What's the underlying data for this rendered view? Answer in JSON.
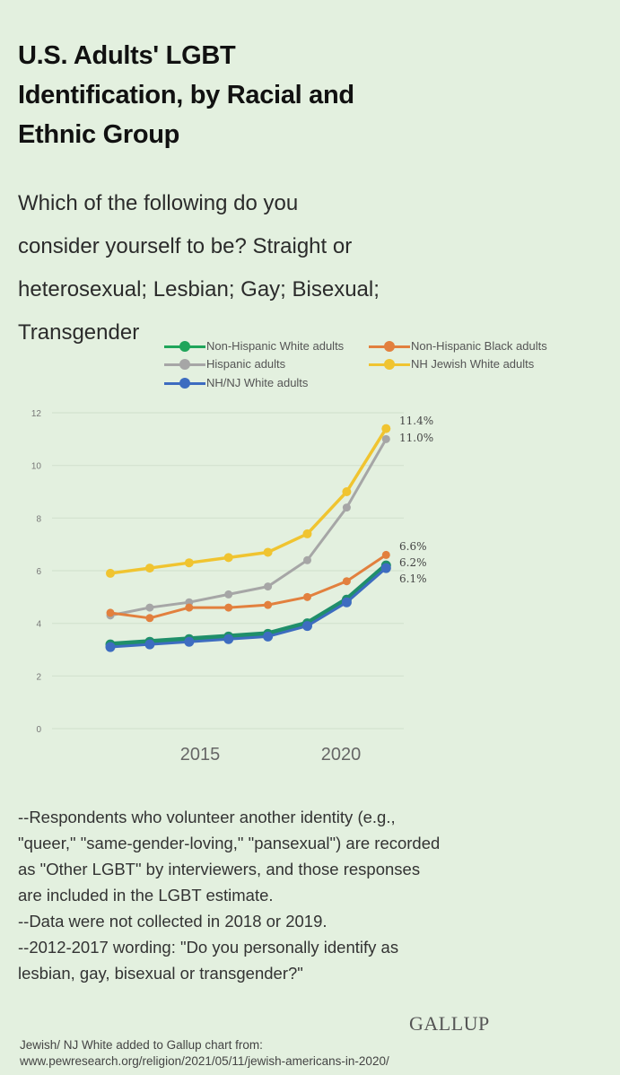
{
  "title_lines": [
    "U.S. Adults' LGBT",
    "Identification, by Racial and",
    "Ethnic Group"
  ],
  "question_lines": [
    "Which of the following do you",
    "consider yourself to be? Straight or",
    "heterosexual; Lesbian; Gay; Bisexual;",
    "Transgender"
  ],
  "legend": [
    {
      "label": "Non-Hispanic White adults",
      "color": "#1fa55a"
    },
    {
      "label": "Non-Hispanic Black adults",
      "color": "#e2803e"
    },
    {
      "label": "Hispanic adults",
      "color": "#a6a6a6"
    },
    {
      "label": "NH Jewish White adults",
      "color": "#f0c430"
    },
    {
      "label": "NH/NJ White adults",
      "color": "#3d6cc0"
    }
  ],
  "chart_data": {
    "type": "line",
    "title": "U.S. Adults' LGBT Identification, by Racial and Ethnic Group",
    "x": [
      2012,
      2013,
      2014,
      2015,
      2016,
      2017,
      2020,
      2021
    ],
    "x_tick_labels": [
      "2015",
      "2020"
    ],
    "y_tick_labels": [
      "0",
      "2",
      "4",
      "6",
      "8",
      "10",
      "12"
    ],
    "ylim": [
      0,
      12
    ],
    "grid": true,
    "legend_position": "top",
    "xlabel": "",
    "ylabel": "",
    "series": [
      {
        "name": "Non-Hispanic White adults",
        "color": "#1f8f6a",
        "values": [
          3.2,
          3.3,
          3.4,
          3.5,
          3.6,
          4.0,
          4.9,
          6.2
        ],
        "end_label": "6.2%"
      },
      {
        "name": "Non-Hispanic Black adults",
        "color": "#e2803e",
        "values": [
          4.4,
          4.2,
          4.6,
          4.6,
          4.7,
          5.0,
          5.6,
          6.6
        ],
        "end_label": "6.6%"
      },
      {
        "name": "Hispanic adults",
        "color": "#a6a6a6",
        "values": [
          4.3,
          4.6,
          4.8,
          5.1,
          5.4,
          6.4,
          8.4,
          11.0
        ],
        "end_label": "11.0%"
      },
      {
        "name": "NH Jewish White adults",
        "color": "#f0c430",
        "values": [
          5.9,
          6.1,
          6.3,
          6.5,
          6.7,
          7.4,
          9.0,
          11.4
        ],
        "end_label": "11.4%"
      },
      {
        "name": "NH/NJ White adults",
        "color": "#3d6cc0",
        "values": [
          3.1,
          3.2,
          3.3,
          3.4,
          3.5,
          3.9,
          4.8,
          6.1
        ],
        "end_label": "6.1%"
      }
    ]
  },
  "footnotes": [
    "--Respondents who volunteer another identity (e.g.,",
    "\"queer,\" \"same-gender-loving,\" \"pansexual\") are recorded",
    "as \"Other LGBT\" by interviewers, and those responses",
    "are included in the LGBT estimate.",
    "--Data were not collected in 2018 or 2019.",
    "--2012-2017 wording: \"Do you personally identify as",
    "lesbian, gay, bisexual or transgender?\""
  ],
  "brand": "GALLUP",
  "source_lines": [
    "Jewish/ NJ White added to Gallup chart from:",
    "www.pewresearch.org/religion/2021/05/11/jewish-americans-in-2020/"
  ]
}
